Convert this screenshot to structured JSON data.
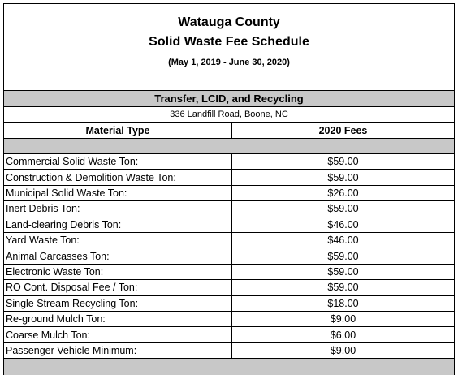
{
  "header": {
    "title_lines": [
      "Watauga County",
      "Solid Waste Fee Schedule"
    ],
    "date_range": "(May 1, 2019 - June 30, 2020)"
  },
  "section": {
    "title": "Transfer, LCID, and Recycling",
    "address": "336 Landfill Road, Boone, NC"
  },
  "table": {
    "columns": [
      "Material Type",
      "2020 Fees"
    ],
    "rows": [
      [
        "Commercial Solid Waste Ton:",
        "$59.00"
      ],
      [
        "Construction & Demolition Waste Ton:",
        "$59.00"
      ],
      [
        "Municipal Solid Waste Ton:",
        "$26.00"
      ],
      [
        "Inert Debris Ton:",
        "$59.00"
      ],
      [
        "Land-clearing Debris Ton:",
        "$46.00"
      ],
      [
        "Yard Waste Ton:",
        "$46.00"
      ],
      [
        "Animal Carcasses Ton:",
        "$59.00"
      ],
      [
        "Electronic Waste Ton:",
        "$59.00"
      ],
      [
        "RO Cont. Disposal Fee / Ton:",
        "$59.00"
      ],
      [
        "Single Stream Recycling Ton:",
        "$18.00"
      ],
      [
        "Re-ground Mulch Ton:",
        "$9.00"
      ],
      [
        "Coarse Mulch Ton:",
        "$6.00"
      ],
      [
        "Passenger Vehicle Minimum:",
        "$9.00"
      ]
    ]
  }
}
